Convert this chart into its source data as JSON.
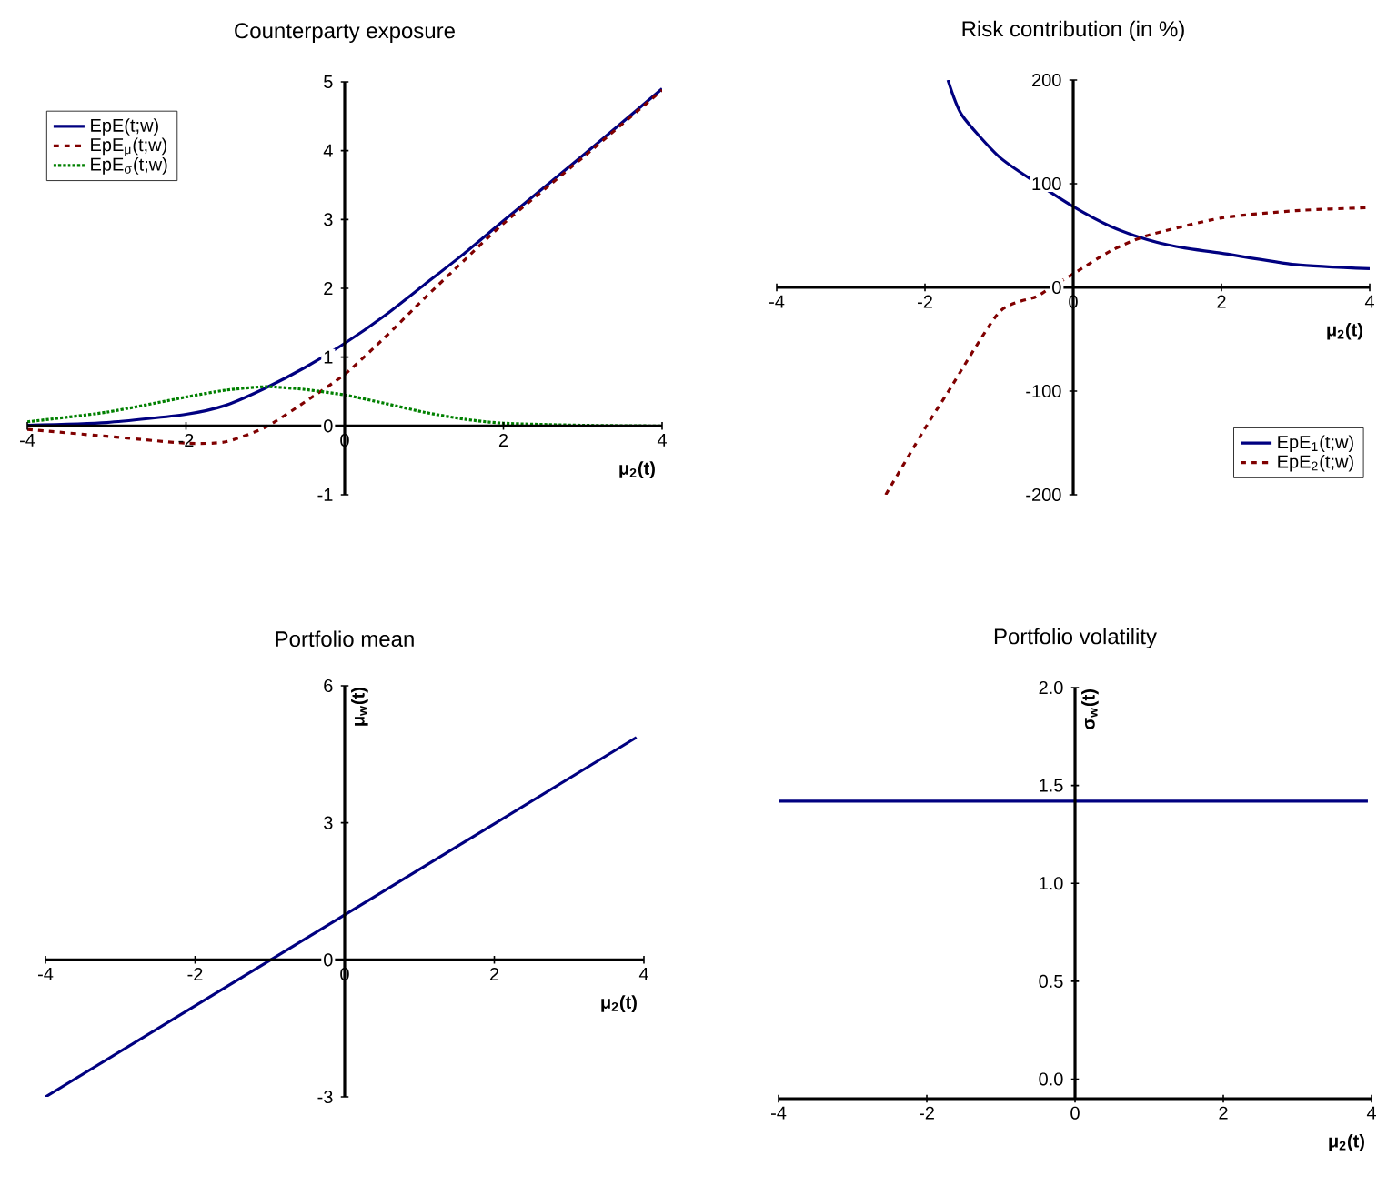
{
  "chart_data": [
    {
      "type": "line",
      "title": "Counterparty exposure",
      "xlabel": "μ$_{2}$(t)",
      "xlim": [
        -4,
        4
      ],
      "ylim": [
        -1,
        5
      ],
      "xticks": [
        -4,
        -2,
        0,
        2,
        4
      ],
      "yticks": [
        -1,
        0,
        1,
        2,
        3,
        4,
        5
      ],
      "legend": "top left",
      "series": [
        {
          "name": "EpE(t;w)",
          "color": "#000080",
          "line_style": "solid",
          "x": [
            -4,
            -3,
            -2,
            -1.5,
            -1,
            -0.5,
            0,
            0.5,
            1,
            1.5,
            2,
            3,
            4
          ],
          "values": [
            0.01,
            0.05,
            0.17,
            0.3,
            0.55,
            0.85,
            1.2,
            1.6,
            2.05,
            2.5,
            2.98,
            3.93,
            4.9
          ]
        },
        {
          "name": "EpE$_{μ}$(t;w)",
          "color": "#800000",
          "line_style": "dashed",
          "x": [
            -4,
            -3,
            -2,
            -1.5,
            -1,
            -0.5,
            0,
            0.5,
            1,
            1.5,
            2,
            3,
            4
          ],
          "values": [
            -0.05,
            -0.15,
            -0.25,
            -0.23,
            -0.02,
            0.35,
            0.75,
            1.28,
            1.85,
            2.4,
            2.94,
            3.9,
            4.88
          ]
        },
        {
          "name": "EpE$_{σ}$(t;w)",
          "color": "#008000",
          "line_style": "dotted",
          "x": [
            -4,
            -3,
            -2,
            -1.5,
            -1,
            -0.5,
            0,
            0.5,
            1,
            1.5,
            2,
            3,
            4
          ],
          "values": [
            0.06,
            0.2,
            0.42,
            0.52,
            0.57,
            0.53,
            0.45,
            0.33,
            0.2,
            0.1,
            0.04,
            0.01,
            0
          ]
        }
      ]
    },
    {
      "type": "line",
      "title": "Risk contribution (in %)",
      "xlabel": "μ$_{2}$(t)",
      "xlim": [
        -4,
        4
      ],
      "ylim": [
        -200,
        200
      ],
      "xticks": [
        -4,
        -2,
        0,
        2,
        4
      ],
      "yticks": [
        -200,
        -100,
        0,
        100,
        200
      ],
      "legend": "bottom right",
      "series": [
        {
          "name": "EpE$_{1}$(t;w)",
          "color": "#000080",
          "line_style": "solid",
          "x": [
            -1.69,
            -1.5,
            -1,
            -0.5,
            0,
            0.5,
            1,
            1.5,
            2,
            3,
            4
          ],
          "values": [
            200,
            166,
            126,
            101,
            78,
            59,
            46,
            38,
            33,
            22,
            18
          ]
        },
        {
          "name": "EpE$_{2}$(t;w)",
          "color": "#800000",
          "line_style": "dashed",
          "x": [
            -2.53,
            -2,
            -1.69,
            -1,
            -0.5,
            -0.3,
            0,
            0.5,
            1,
            2,
            3,
            4
          ],
          "values": [
            -200,
            -136,
            -101,
            -24,
            -9,
            0,
            13,
            35,
            50,
            67,
            74,
            77
          ]
        }
      ]
    },
    {
      "type": "line",
      "title": "Portfolio mean",
      "xlabel": "μ$_{2}$(t)",
      "ylabel": "μ$_{w}$(t)",
      "xlim": [
        -4,
        4
      ],
      "ylim": [
        -3,
        6
      ],
      "xticks": [
        -4,
        -2,
        0,
        2,
        4
      ],
      "yticks": [
        -3,
        0,
        3,
        6
      ],
      "series": [
        {
          "color": "#000080",
          "line_style": "solid",
          "x": [
            -4,
            3.9
          ],
          "values": [
            -3.0,
            4.87
          ]
        }
      ]
    },
    {
      "type": "line",
      "title": "Portfolio volatility",
      "xlabel": "μ$_{2}$(t)",
      "ylabel": "σ$_{w}$(t)",
      "xlim": [
        -4,
        4
      ],
      "ylim": [
        -0.1,
        2.0
      ],
      "xticks": [
        -4,
        -2,
        0,
        2,
        4
      ],
      "yticks": [
        {
          "value": 0,
          "label": "0.0"
        },
        {
          "value": 0.5,
          "label": "0.5"
        },
        {
          "value": 1,
          "label": "1.0"
        },
        {
          "value": 1.5,
          "label": "1.5"
        },
        {
          "value": 2,
          "label": "2.0"
        }
      ],
      "series": [
        {
          "color": "#000080",
          "line_style": "solid",
          "x": [
            -4,
            3.95
          ],
          "values": [
            1.42,
            1.42
          ]
        }
      ]
    }
  ]
}
